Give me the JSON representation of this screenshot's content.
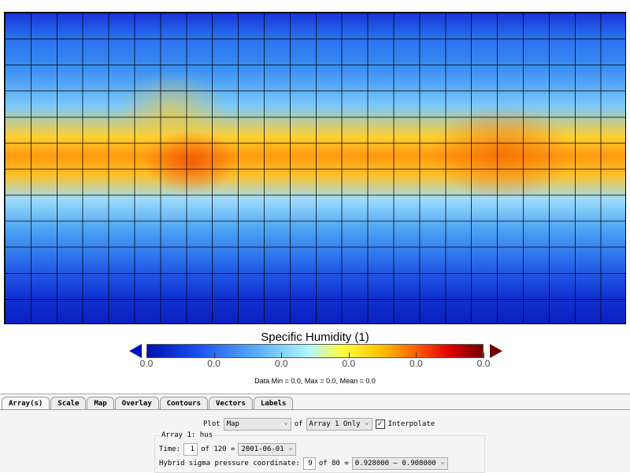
{
  "plot": {
    "title": "Specific Humidity (1)",
    "colorbar_ticks": [
      "0.0",
      "0.0",
      "0.0",
      "0.0",
      "0.0",
      "0.0"
    ],
    "stats": "Data Min = 0.0, Max = 0.0, Mean = 0.0",
    "colormap": [
      "#0010b0",
      "#5ab0f8",
      "#b0f4ff",
      "#ffff40",
      "#ff6000",
      "#700000"
    ]
  },
  "tabs": [
    "Array(s)",
    "Scale",
    "Map",
    "Overlay",
    "Contours",
    "Vectors",
    "Labels"
  ],
  "controls": {
    "plot_label": "Plot",
    "plot_value": "Map",
    "of_label": "of",
    "array_value": "Array 1 Only",
    "interpolate_label": "Interpolate",
    "interpolate_checked": true,
    "array_group": "Array 1: hus",
    "time_label": "Time:",
    "time_value": "1",
    "time_of": "of 120 =",
    "time_select": "2001-06-01",
    "coord_label": "Hybrid sigma pressure coordinate:",
    "coord_value": "9",
    "coord_of": "of 80 =",
    "coord_select": "0.928000 — 0.908000"
  }
}
